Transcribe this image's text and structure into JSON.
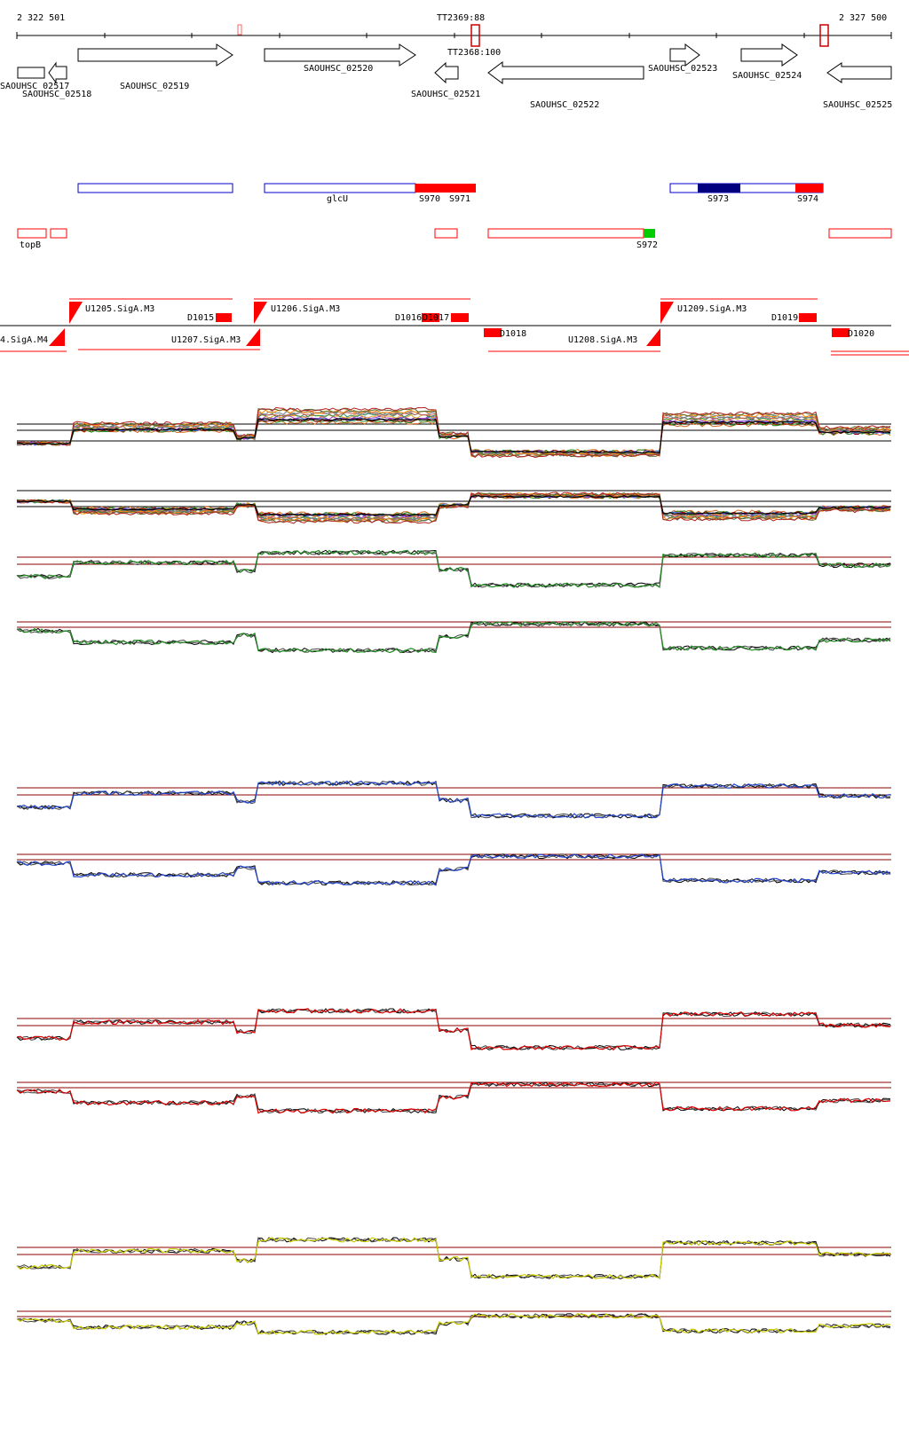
{
  "header": {
    "start_coord": "2 322 501",
    "end_coord": "2 327 500",
    "terminators": [
      "TT2369:88",
      "TT2368:100"
    ]
  },
  "genes": [
    "SAOUHSC_02517",
    "SAOUHSC_02518",
    "SAOUHSC_02519",
    "SAOUHSC_02520",
    "SAOUHSC_02521",
    "SAOUHSC_02522",
    "SAOUHSC_02523",
    "SAOUHSC_02524",
    "SAOUHSC_02525"
  ],
  "features": {
    "blue_track": [
      "glcU",
      "S970",
      "S971",
      "S973",
      "S974"
    ],
    "red_track": [
      "topB",
      "S972"
    ]
  },
  "promoters": {
    "upstream": [
      "U1205.SigA.M3",
      "U1206.SigA.M3",
      "U1209.SigA.M3",
      "U1207.SigA.M3",
      "U1208.SigA.M3",
      "4.SigA.M4"
    ],
    "downstream": [
      "D1015",
      "D1016",
      "D1017",
      "D1018",
      "D1019",
      "D1020"
    ]
  },
  "colors": {
    "gene_outline": "#000000",
    "feature_blue": "#0000cc",
    "feature_dark_blue": "#000080",
    "feature_red": "#ff0000",
    "feature_green": "#00cc00",
    "panel_green": "#228b22",
    "panel_blue": "#2244cc",
    "panel_red": "#dd0000",
    "panel_yellow": "#cccc00",
    "threshold": "#8b0000"
  },
  "icons": {
    "gene_arrow": "outlined-arrow-icon",
    "promoter_flag": "red-flag-icon",
    "terminator": "hairpin-box-icon"
  }
}
